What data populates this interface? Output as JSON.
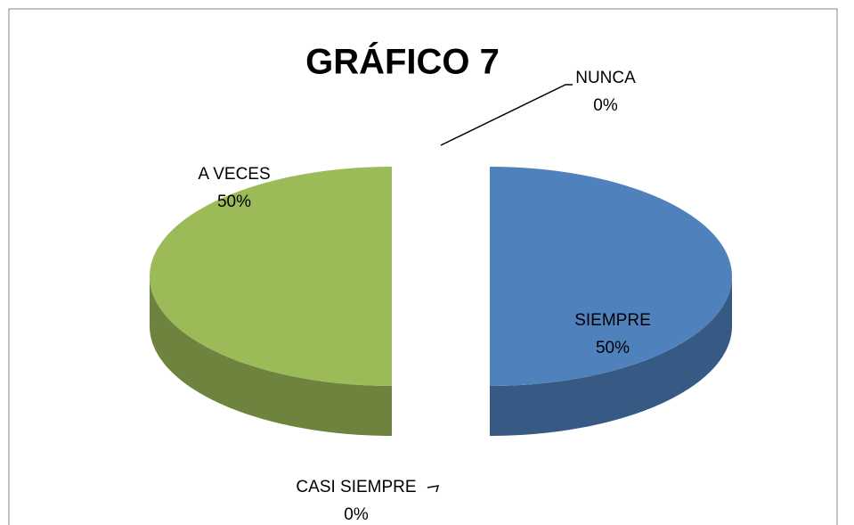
{
  "chart_data": {
    "type": "pie",
    "title": "GRÁFICO 7",
    "categories": [
      "SIEMPRE",
      "CASI SIEMPRE",
      "A VECES",
      "NUNCA"
    ],
    "values": [
      50,
      0,
      50,
      0
    ],
    "value_labels": [
      "50%",
      "0%",
      "50%",
      "0%"
    ],
    "colors": [
      "#4f81bd",
      "#c0504d",
      "#9bbb59",
      "#8064a2"
    ]
  }
}
